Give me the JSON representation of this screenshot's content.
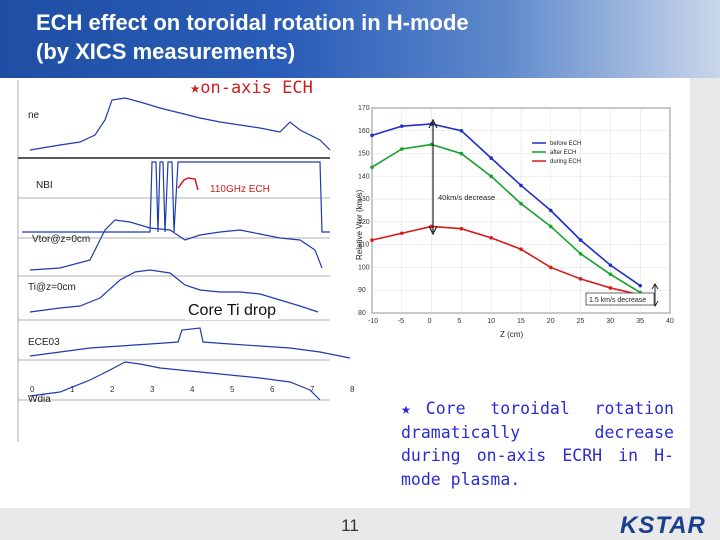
{
  "header": {
    "title_line1": "ECH effect on toroidal rotation in H-mode",
    "title_line2": "(by XICS measurements)",
    "bg_color": "#1f4fa3"
  },
  "left_panel": {
    "annotation": "★on-axis ECH",
    "core_ti_label": "Core Ti drop",
    "traces": [
      {
        "label": "ne",
        "color": "#1e3bb0"
      },
      {
        "label": "NBI",
        "color": "#1e3bb0"
      },
      {
        "label": "110GHz ECH",
        "color": "#d11a1a"
      },
      {
        "label": "Vtor@z=0cm",
        "color": "#1e3bb0"
      },
      {
        "label": "Ti@z=0cm",
        "color": "#1e3bb0"
      },
      {
        "label": "ECE03",
        "color": "#1e3bb0"
      },
      {
        "label": "Wdia",
        "color": "#1e3bb0"
      }
    ],
    "time_ticks": [
      "0",
      "1",
      "2",
      "3",
      "4",
      "5",
      "6",
      "7",
      "8"
    ]
  },
  "chart_data": {
    "type": "line",
    "title": "",
    "xlabel": "Z (cm)",
    "ylabel": "Relative Vtor (km/s)",
    "x": [
      -10,
      -5,
      0,
      5,
      10,
      15,
      20,
      25,
      30,
      35
    ],
    "xlim": [
      -10,
      40
    ],
    "ylim": [
      80,
      170
    ],
    "x_ticks": [
      "-10",
      "-5",
      "0",
      "5",
      "10",
      "15",
      "20",
      "25",
      "30",
      "35",
      "40"
    ],
    "y_ticks": [
      "80",
      "90",
      "100",
      "110",
      "120",
      "130",
      "140",
      "150",
      "160",
      "170"
    ],
    "series": [
      {
        "name": "before ECH",
        "color": "#1e2fc8",
        "values": [
          158,
          162,
          163,
          160,
          148,
          136,
          125,
          112,
          101,
          92
        ]
      },
      {
        "name": "after ECH",
        "color": "#12a12a",
        "values": [
          144,
          152,
          154,
          150,
          140,
          128,
          118,
          106,
          97,
          89
        ]
      },
      {
        "name": "during ECH",
        "color": "#d91a1a",
        "values": [
          112,
          115,
          118,
          117,
          113,
          108,
          100,
          95,
          91,
          88
        ]
      }
    ],
    "legend_position": "top-right",
    "annotations": [
      "40km/s decrease",
      "1.5 km/s decrease"
    ]
  },
  "note": {
    "text": "★Core toroidal rotation dramatically decrease during on-axis ECRH in H-mode plasma."
  },
  "footer": {
    "page_number": "11",
    "logo_text": "KSTAR"
  }
}
